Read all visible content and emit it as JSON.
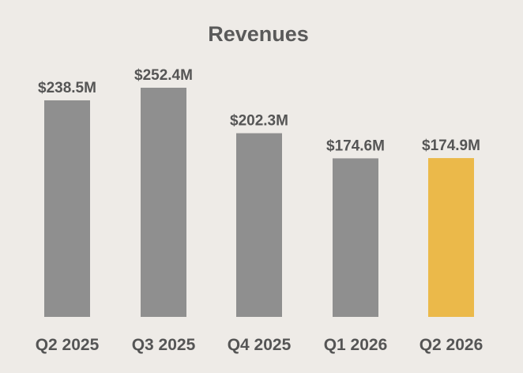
{
  "chart_data": {
    "type": "bar",
    "title": "Revenues",
    "categories": [
      "Q2 2025",
      "Q3 2025",
      "Q4 2025",
      "Q1 2026",
      "Q2 2026"
    ],
    "values": [
      238.5,
      252.4,
      202.3,
      174.6,
      174.9
    ],
    "data_labels": [
      "$238.5M",
      "$252.4M",
      "$202.3M",
      "$174.6M",
      "$174.9M"
    ],
    "unit": "$M",
    "ylim": [
      0,
      252.4
    ],
    "grid": false,
    "legend": "none",
    "colors": {
      "default_bar": "#8f8f8f",
      "highlight_bar": "#ebb94a",
      "highlight_index": 4
    }
  }
}
